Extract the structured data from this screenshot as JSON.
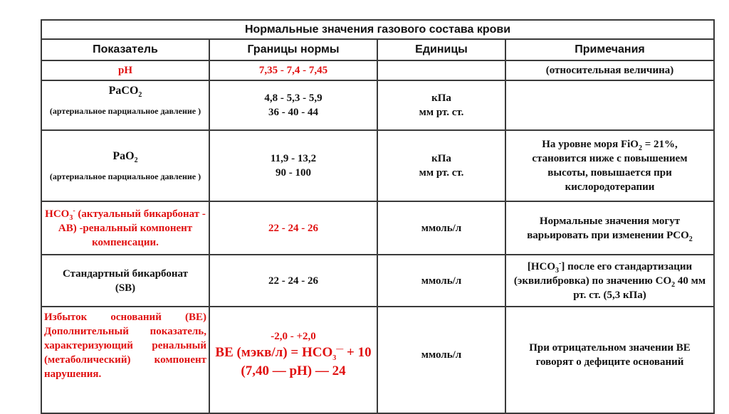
{
  "table": {
    "title": "Нормальные значения газового состава крови",
    "headers": [
      "Показатель",
      "Границы нормы",
      "Единицы",
      "Примечания"
    ],
    "rows": {
      "ph": {
        "name": "pH",
        "range": "7,35 - 7,4 - 7,45",
        "units": "",
        "note": "(относительная величина)"
      },
      "paco2": {
        "name": "PaCO",
        "name_sub": "2",
        "desc": "(артериальное парциальное давление )",
        "range1": "4,8 - 5,3 - 5,9",
        "range2": "36 - 40 - 44",
        "units1": "кПа",
        "units2": "мм рт. ст.",
        "note": ""
      },
      "pao2": {
        "name": "PaO",
        "name_sub": "2",
        "desc": "(артериальное парциальное давление )",
        "range1": "11,9 - 13,2",
        "range2": "90 - 100",
        "units1": "кПа",
        "units2": "мм рт. ст.",
        "note_a": "На уровне моря FiO",
        "note_sub": "2",
        "note_b": " = 21%, становится ниже с повышением высоты, повышается при кислородотерапии"
      },
      "hco3": {
        "name": "HCO",
        "name_sub": "3",
        "name_sup": "-",
        "name_rest": " (актуальный бикарбонат - АВ) -ренальный компонент компенсации.",
        "range": "22 - 24 - 26",
        "units": "ммоль/л",
        "note_a": "Нормальные значения могут варьировать при изменении PCO",
        "note_sub": "2"
      },
      "sb": {
        "name": "Стандартный бикарбонат (SB)",
        "range": "22 - 24 - 26",
        "units": "ммоль/л",
        "note_a": "[HCO",
        "note_sub": "3",
        "note_sup": "-",
        "note_b": "] после его стандартизации (эквилибровка) по значению CO",
        "note_sub2": "2",
        "note_c": " 40 мм рт. ст. (5,3 кПа)"
      },
      "be": {
        "name": "Избыток оснований (BE) Дополнительный показатель, характеризующий ренальный (метаболический) компонент нарушения.",
        "range": "-2,0 - +2,0",
        "formula_a": "BE (мэкв/л) = HCO",
        "formula_sub": "3",
        "formula_sup": "—",
        "formula_b": " + 10 (7,40 — pH) — 24",
        "units": "ммоль/л",
        "note": "При отрицательном значении BE говорят о дефиците оснований"
      }
    }
  },
  "colors": {
    "accent_red": "#e01010",
    "text": "#111111",
    "border": "#3a3a3a"
  }
}
